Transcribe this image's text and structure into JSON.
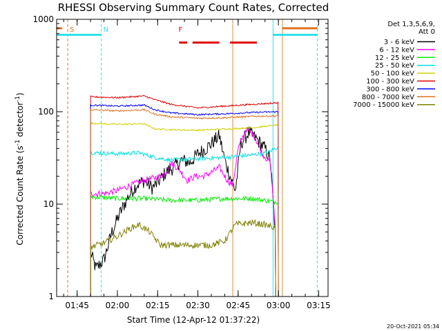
{
  "chart_data": {
    "type": "line",
    "title": "RHESSI Observing Summary Count Rates, Corrected",
    "xlabel": "Start Time (12-Apr-12 01:37:22)",
    "ylabel": "Corrected Count Rate (s⁻¹ detector⁻¹)",
    "ylabel_parts": [
      "Corrected Count Rate (s",
      "-1",
      " detector",
      "-1",
      ")"
    ],
    "y_scale": "log",
    "ylim": [
      1,
      1000
    ],
    "y_ticks": [
      {
        "v": 1,
        "label": "1"
      },
      {
        "v": 10,
        "label": "10"
      },
      {
        "v": 100,
        "label": "100"
      },
      {
        "v": 1000,
        "label": "1000"
      }
    ],
    "xlim": [
      "01:37:22",
      "03:18:30"
    ],
    "x_ticks": [
      "01:45",
      "02:00",
      "02:15",
      "02:30",
      "02:45",
      "03:00",
      "03:15"
    ],
    "legend_header": [
      "Det 1,3,5,6,9,",
      "Att 0"
    ],
    "legend_position": "right",
    "timestamp": "20-Oct-2021 05:34",
    "markers": [
      {
        "label": "S",
        "color": "#e07020",
        "time": "01:41:30"
      },
      {
        "label": "N",
        "color": "#30e0f0",
        "time": "01:54:00"
      },
      {
        "label": "F",
        "color": "#e00000",
        "time": "02:22:00"
      }
    ],
    "segments": [
      {
        "name": "saa",
        "color": "#e07020",
        "y": 800,
        "ranges": [
          [
            "01:37:22",
            "01:39:30"
          ],
          [
            "03:01:30",
            "03:14:30"
          ]
        ]
      },
      {
        "name": "night",
        "color": "#30e0f0",
        "y": 680,
        "ranges": [
          [
            "01:37:22",
            "01:54:00"
          ],
          [
            "02:58:00",
            "03:14:30"
          ]
        ]
      },
      {
        "name": "flare",
        "color": "#e00000",
        "y": 560,
        "ranges": [
          [
            "02:23:00",
            "02:26:00"
          ],
          [
            "02:28:00",
            "02:38:00"
          ],
          [
            "02:42:00",
            "02:52:00"
          ]
        ]
      }
    ],
    "vlines": [
      {
        "time": "01:41:30",
        "color": "#e07020",
        "dash": true
      },
      {
        "time": "01:54:00",
        "color": "#30e0f0",
        "dash": true
      },
      {
        "time": "02:43:00",
        "color": "#d09040",
        "dash": false
      },
      {
        "time": "02:58:00",
        "color": "#30e0f0",
        "dash": false
      },
      {
        "time": "03:01:30",
        "color": "#d09040",
        "dash": false
      },
      {
        "time": "03:14:30",
        "color": "#30e0f0",
        "dash": true
      }
    ],
    "series": [
      {
        "name": "3 - 6 keV",
        "color": "#000000",
        "noise": 0.18,
        "t": [
          "01:50:00",
          "01:52:00",
          "01:55:00",
          "01:58:00",
          "02:01:00",
          "02:04:00",
          "02:07:00",
          "02:10:00",
          "02:13:00",
          "02:15:00",
          "02:18:00",
          "02:21:00",
          "02:24:00",
          "02:27:00",
          "02:30:00",
          "02:33:00",
          "02:35:00",
          "02:38:00",
          "02:40:00",
          "02:42:00",
          "02:44:00",
          "02:46:00",
          "02:49:00",
          "02:52:00",
          "02:55:00",
          "02:57:00",
          "02:59:00"
        ],
        "y": [
          3,
          2,
          2.5,
          5,
          8,
          12,
          16,
          18,
          15,
          17,
          22,
          25,
          30,
          28,
          35,
          40,
          45,
          55,
          30,
          20,
          14,
          45,
          60,
          50,
          40,
          30,
          4
        ]
      },
      {
        "name": "6 - 12 keV",
        "color": "#ff00ff",
        "noise": 0.08,
        "t": [
          "01:50:00",
          "01:55:00",
          "02:00:00",
          "02:05:00",
          "02:10:00",
          "02:13:00",
          "02:16:00",
          "02:18:00",
          "02:20:00",
          "02:23:00",
          "02:26:00",
          "02:29:00",
          "02:32:00",
          "02:35:00",
          "02:38:00",
          "02:41:00",
          "02:43:00",
          "02:45:00",
          "02:48:00",
          "02:51:00",
          "02:54:00",
          "02:57:00",
          "02:59:00"
        ],
        "y": [
          13,
          13,
          14,
          16,
          18,
          19,
          20,
          22,
          28,
          24,
          18,
          20,
          20,
          22,
          25,
          18,
          16,
          40,
          65,
          55,
          35,
          28,
          5
        ]
      },
      {
        "name": "12 - 25 keV",
        "color": "#00ee00",
        "noise": 0.06,
        "t": [
          "01:50:00",
          "02:00:00",
          "02:10:00",
          "02:20:00",
          "02:30:00",
          "02:40:00",
          "02:50:00",
          "03:00:00"
        ],
        "y": [
          12,
          11.5,
          11.5,
          11,
          11,
          11.5,
          11.5,
          10.5
        ]
      },
      {
        "name": "25 - 50 keV",
        "color": "#00e0e0",
        "noise": 0.05,
        "t": [
          "01:50:00",
          "02:00:00",
          "02:08:00",
          "02:14:00",
          "02:20:00",
          "02:30:00",
          "02:40:00",
          "02:50:00",
          "02:56:00",
          "03:00:00"
        ],
        "y": [
          36,
          35,
          36,
          32,
          30,
          31,
          32,
          34,
          36,
          42
        ]
      },
      {
        "name": "50 - 100 keV",
        "color": "#d0d000",
        "noise": 0.02,
        "t": [
          "01:50:00",
          "02:00:00",
          "02:10:00",
          "02:14:00",
          "02:20:00",
          "02:30:00",
          "02:40:00",
          "02:50:00",
          "03:00:00"
        ],
        "y": [
          75,
          73,
          74,
          65,
          64,
          63,
          65,
          67,
          72
        ]
      },
      {
        "name": "100 - 300 keV",
        "color": "#e00000",
        "noise": 0.02,
        "t": [
          "01:50:00",
          "02:00:00",
          "02:10:00",
          "02:14:00",
          "02:20:00",
          "02:30:00",
          "02:40:00",
          "02:50:00",
          "03:00:00"
        ],
        "y": [
          145,
          142,
          148,
          135,
          120,
          110,
          115,
          120,
          125
        ]
      },
      {
        "name": "300 - 800 keV",
        "color": "#0000ff",
        "noise": 0.02,
        "t": [
          "01:50:00",
          "02:00:00",
          "02:10:00",
          "02:14:00",
          "02:20:00",
          "02:30:00",
          "02:40:00",
          "02:50:00",
          "03:00:00"
        ],
        "y": [
          118,
          115,
          118,
          105,
          97,
          93,
          95,
          98,
          100
        ]
      },
      {
        "name": "800 - 7000 keV",
        "color": "#e07020",
        "noise": 0.02,
        "t": [
          "01:50:00",
          "02:00:00",
          "02:10:00",
          "02:14:00",
          "02:20:00",
          "02:30:00",
          "02:40:00",
          "02:50:00",
          "03:00:00"
        ],
        "y": [
          105,
          102,
          105,
          94,
          88,
          85,
          86,
          89,
          90
        ]
      },
      {
        "name": "7000 - 15000 keV",
        "color": "#808000",
        "noise": 0.08,
        "t": [
          "01:50:00",
          "01:55:00",
          "02:00:00",
          "02:05:00",
          "02:08:00",
          "02:12:00",
          "02:16:00",
          "02:25:00",
          "02:35:00",
          "02:40:00",
          "02:44:00",
          "02:50:00",
          "02:55:00",
          "02:59:00"
        ],
        "y": [
          3.4,
          3.8,
          4.5,
          5.5,
          6,
          5,
          3.6,
          3.6,
          3.6,
          4,
          6,
          6.3,
          6,
          5.5
        ]
      }
    ]
  }
}
